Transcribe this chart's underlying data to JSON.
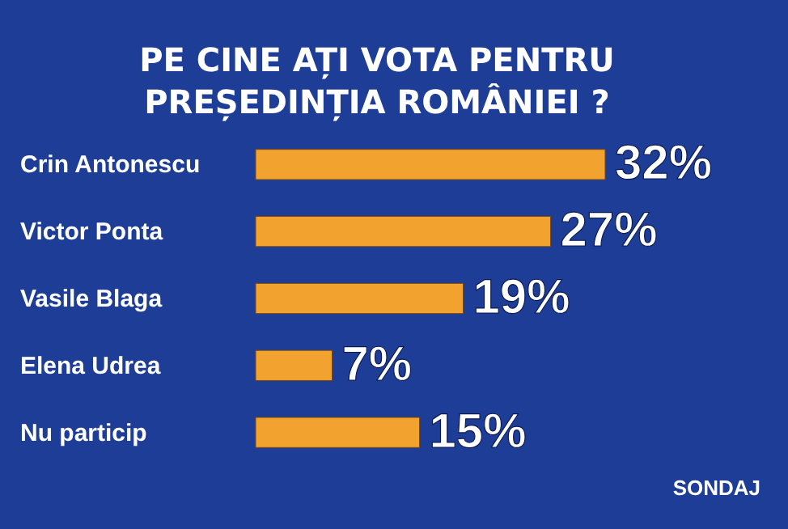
{
  "chart_data": {
    "type": "bar",
    "orientation": "horizontal",
    "title": "PE CINE AȚI VOTA PENTRU PREȘEDINȚIA ROMÂNIEI ?",
    "categories": [
      "Crin Antonescu",
      "Victor Ponta",
      "Vasile Blaga",
      "Elena Udrea",
      "Nu particip"
    ],
    "values": [
      32,
      27,
      19,
      7,
      15
    ],
    "value_labels": [
      "32%",
      "27%",
      "19%",
      "7%",
      "15%"
    ],
    "color": "#f2a22e",
    "annotations": [
      "SONDAJ"
    ]
  }
}
